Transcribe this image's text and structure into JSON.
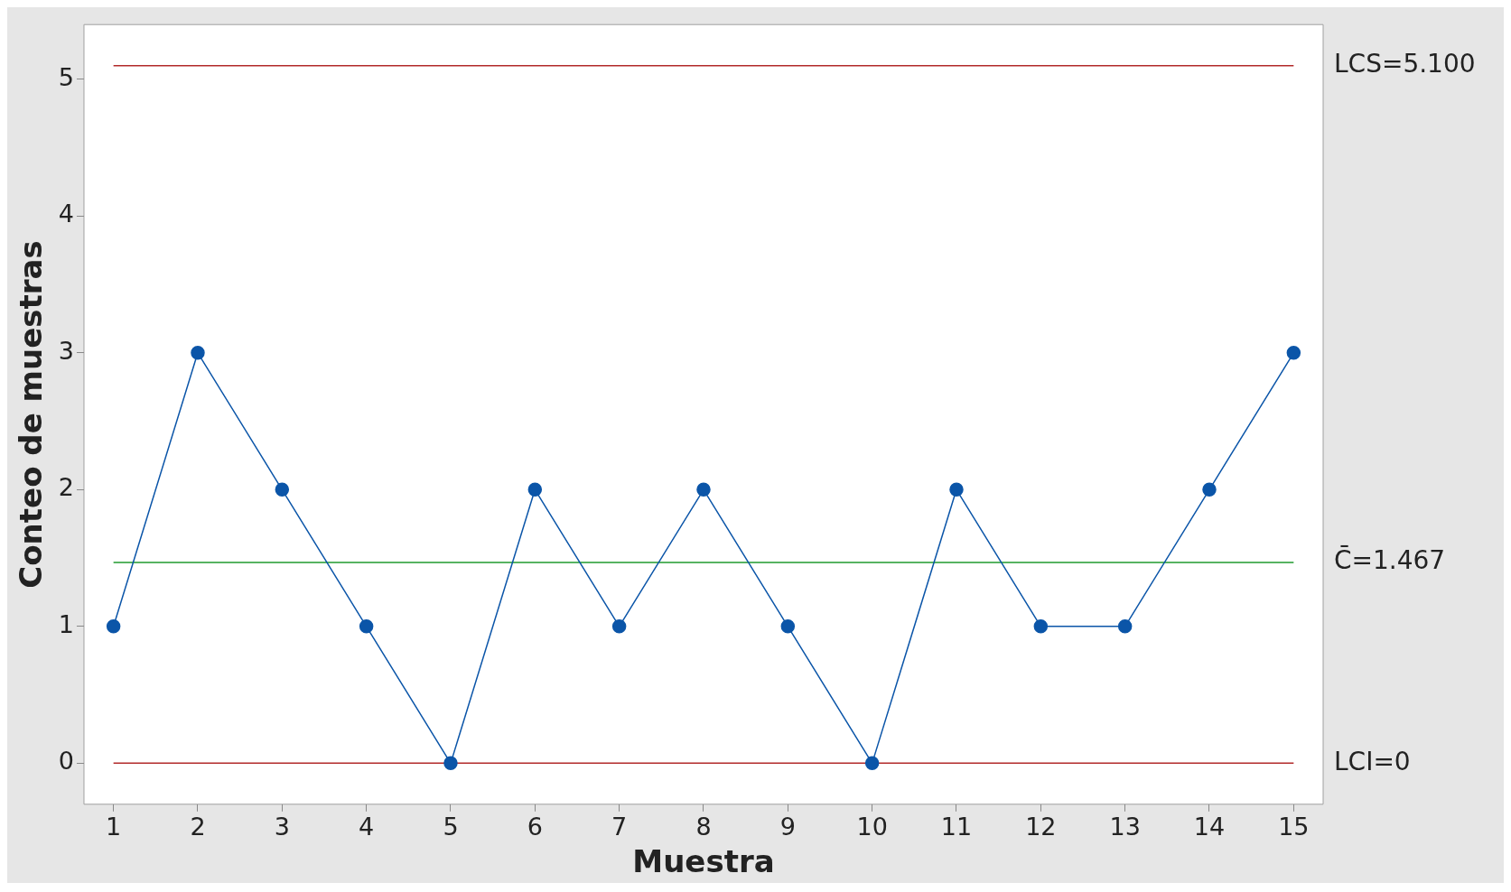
{
  "chart_data": {
    "type": "line",
    "xlabel": "Muestra",
    "ylabel": "Conteo de muestras",
    "x": [
      1,
      2,
      3,
      4,
      5,
      6,
      7,
      8,
      9,
      10,
      11,
      12,
      13,
      14,
      15
    ],
    "series": [
      {
        "color": "#0b55a8",
        "values": [
          1,
          3,
          2,
          1,
          0,
          2,
          1,
          2,
          1,
          0,
          2,
          1,
          1,
          2,
          3
        ]
      }
    ],
    "xlim": [
      0.65,
      15.35
    ],
    "xticks": [
      1,
      2,
      3,
      4,
      5,
      6,
      7,
      8,
      9,
      10,
      11,
      12,
      13,
      14,
      15
    ],
    "ylim": [
      -0.3,
      5.4
    ],
    "yticks": [
      0,
      1,
      2,
      3,
      4,
      5
    ],
    "marker": "circle",
    "line_style": "solid",
    "grid": false,
    "legend": false,
    "ref_lines": [
      {
        "axis": "y",
        "value": 5.1,
        "label": "LCS=5.100",
        "color": "#b22a2a"
      },
      {
        "axis": "y",
        "value": 1.467,
        "label": "C̄=1.467",
        "color": "#1f9a2e"
      },
      {
        "axis": "y",
        "value": 0,
        "label": "LCI=0",
        "color": "#b22a2a"
      }
    ]
  }
}
